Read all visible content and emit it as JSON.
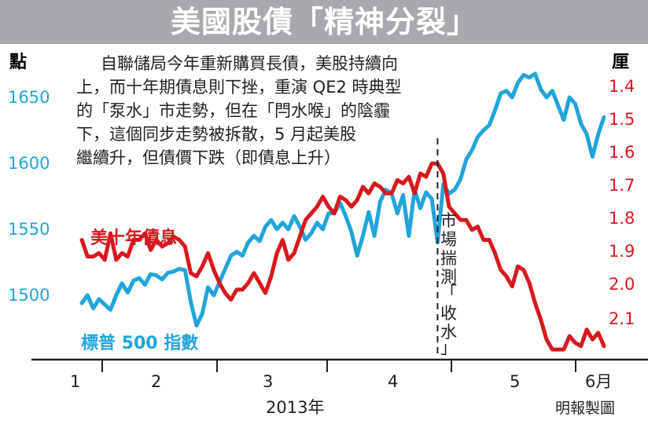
{
  "title": "美國股債「精神分裂」",
  "annotation_lines": [
    "自聯儲局今年重新購買長債，美股持續向",
    "上，而十年期債息則下挫，重演 QE2 時典型",
    "的「泵水」市走勢，但在「閂水喉」的陰霾",
    "下，這個同步走勢被拆散，5 月起美股",
    "繼續升，但債價下跌（即債息上升）"
  ],
  "event_label_chars": [
    "市",
    "場",
    "揣",
    "測",
    "「",
    "收",
    "水",
    "」"
  ],
  "credit": "明報製圖",
  "colors": {
    "sp500": "#20a5da",
    "bond": "#d7191f",
    "banner": "#a7a9ac",
    "axis": "#231f20"
  },
  "chart_data": {
    "type": "line",
    "xlabel": "2013年",
    "x_ticks": [
      "1",
      "2",
      "3",
      "4",
      "5",
      "6月"
    ],
    "left_axis": {
      "unit": "點",
      "ticks": [
        "1650",
        "1600",
        "1550",
        "1500"
      ],
      "range": [
        1470,
        1700
      ]
    },
    "right_axis": {
      "unit": "厘",
      "ticks": [
        "1.4",
        "1.5",
        "1.6",
        "1.7",
        "1.8",
        "1.9",
        "2.0",
        "2.1"
      ],
      "range": [
        2.22,
        1.33
      ],
      "inverted": true
    },
    "series": [
      {
        "name": "標普 500 指數",
        "axis": "left",
        "values": [
          1494,
          1500,
          1490,
          1497,
          1493,
          1489,
          1500,
          1509,
          1502,
          1511,
          1513,
          1508,
          1516,
          1515,
          1512,
          1517,
          1518,
          1520,
          1519,
          1495,
          1477,
          1486,
          1506,
          1500,
          1510,
          1520,
          1530,
          1533,
          1530,
          1540,
          1545,
          1541,
          1552,
          1557,
          1550,
          1555,
          1550,
          1560,
          1552,
          1542,
          1547,
          1555,
          1550,
          1562,
          1562,
          1570,
          1560,
          1548,
          1530,
          1545,
          1563,
          1545,
          1571,
          1580,
          1577,
          1562,
          1576,
          1545,
          1580,
          1566,
          1578,
          1573,
          1540,
          1584,
          1577,
          1580,
          1588,
          1603,
          1610,
          1620,
          1625,
          1629,
          1640,
          1653,
          1655,
          1650,
          1661,
          1667,
          1665,
          1668,
          1656,
          1650,
          1655,
          1644,
          1633,
          1650,
          1645,
          1630,
          1622,
          1605,
          1622,
          1635
        ]
      },
      {
        "name": "美十年債息",
        "axis": "right",
        "values": [
          1.86,
          1.91,
          1.91,
          1.9,
          1.92,
          1.84,
          1.92,
          1.9,
          1.91,
          1.86,
          1.86,
          1.84,
          1.89,
          1.86,
          1.88,
          1.87,
          1.85,
          1.86,
          1.88,
          1.96,
          1.97,
          1.94,
          1.9,
          1.95,
          1.99,
          2.02,
          2.04,
          2.01,
          2.01,
          1.99,
          1.96,
          1.99,
          2.02,
          1.97,
          1.9,
          1.86,
          1.92,
          1.9,
          1.85,
          1.8,
          1.78,
          1.76,
          1.73,
          1.76,
          1.78,
          1.73,
          1.74,
          1.76,
          1.74,
          1.7,
          1.72,
          1.69,
          1.7,
          1.72,
          1.72,
          1.68,
          1.69,
          1.67,
          1.72,
          1.66,
          1.67,
          1.63,
          1.63,
          1.66,
          1.76,
          1.78,
          1.8,
          1.8,
          1.83,
          1.82,
          1.86,
          1.86,
          1.9,
          1.95,
          1.97,
          2.0,
          1.94,
          1.95,
          1.99,
          2.05,
          2.1,
          2.16,
          2.19,
          2.19,
          2.19,
          2.15,
          2.17,
          2.18,
          2.13,
          2.16,
          2.14,
          2.18
        ]
      }
    ],
    "event_index": 62
  }
}
